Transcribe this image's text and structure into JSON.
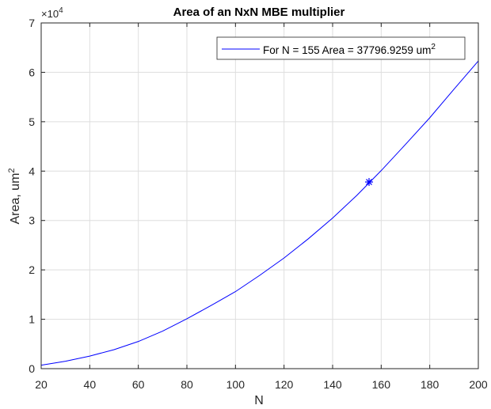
{
  "chart_data": {
    "type": "line",
    "title": "Area of an NxN MBE multiplier",
    "xlabel": "N",
    "ylabel_base": "Area, um",
    "ylabel_sup": "2",
    "y_exponent_prefix": "×10",
    "y_exponent": "4",
    "xlim": [
      20,
      200
    ],
    "ylim": [
      0,
      70000
    ],
    "xticks": [
      20,
      40,
      60,
      80,
      100,
      120,
      140,
      160,
      180,
      200
    ],
    "yticks": [
      0,
      10000,
      20000,
      30000,
      40000,
      50000,
      60000,
      70000
    ],
    "ytick_labels": [
      "0",
      "1",
      "2",
      "3",
      "4",
      "5",
      "6",
      "7"
    ],
    "grid": true,
    "legend_position": "top-right",
    "series": [
      {
        "name_base": "For N = 155 Area = 37796.9259 um",
        "name_sup": "2",
        "color": "#0000ff",
        "x": [
          20,
          30,
          40,
          50,
          60,
          70,
          80,
          90,
          100,
          110,
          120,
          130,
          140,
          150,
          160,
          170,
          180,
          190,
          200
        ],
        "y": [
          700,
          1500,
          2550,
          3850,
          5500,
          7600,
          10100,
          12800,
          15600,
          18900,
          22400,
          26300,
          30500,
          35100,
          40100,
          45400,
          50800,
          56600,
          62300
        ]
      }
    ],
    "marker": {
      "x": 155,
      "y": 37796.9259,
      "symbol": "*",
      "color": "#0000ff"
    }
  }
}
